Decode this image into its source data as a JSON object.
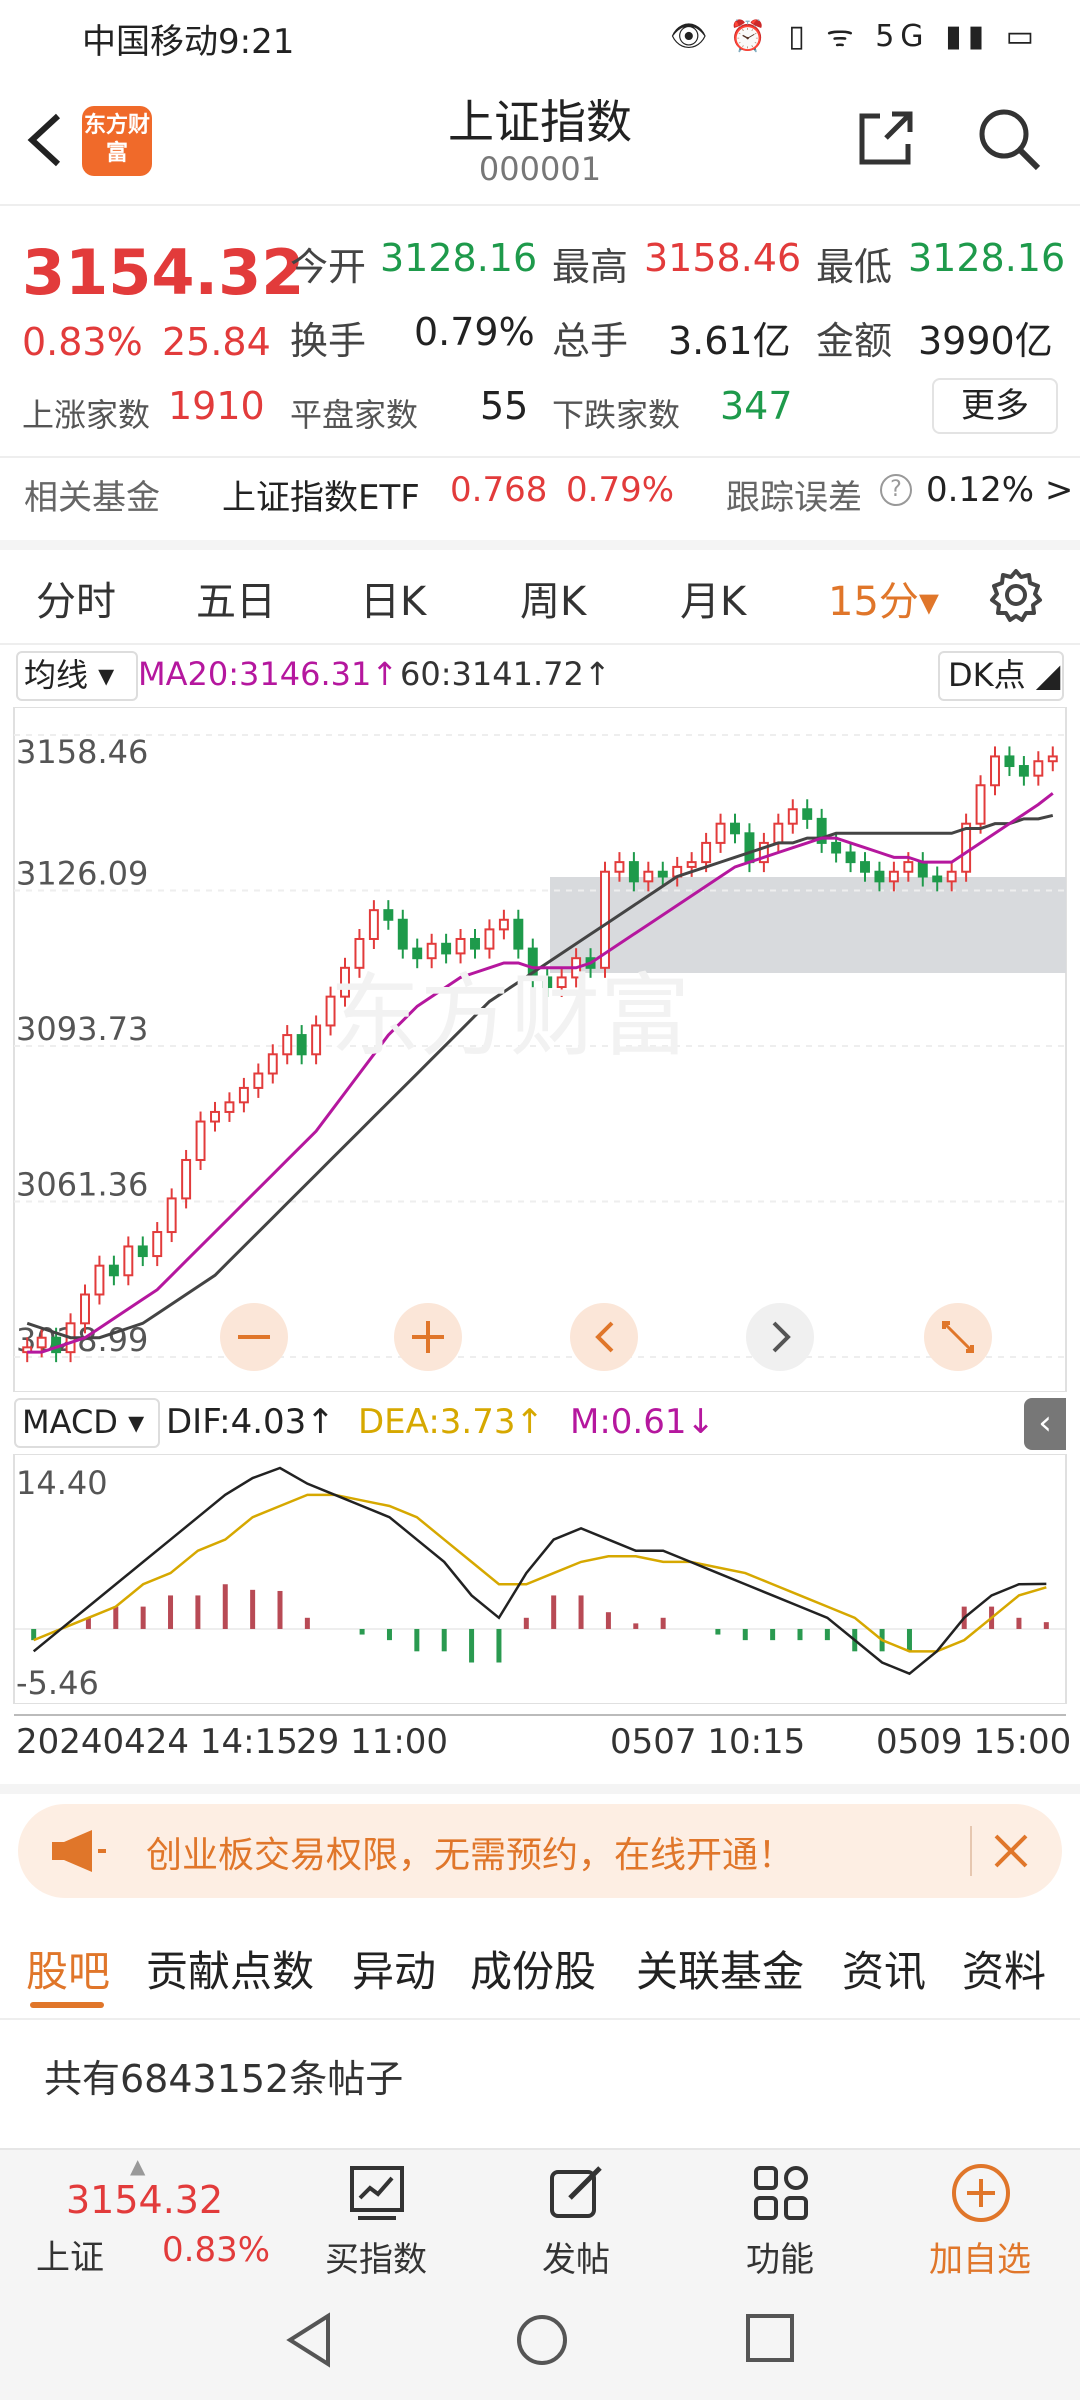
{
  "status": {
    "carrier_time": "中国移动9:21",
    "icons": "👁 ⏰ ▯ ᯤ 5G ▮▮ ▭"
  },
  "header": {
    "logo_text": "东方财富",
    "title": "上证指数",
    "code": "000001"
  },
  "quote": {
    "price": "3154.32",
    "change_pct": "0.83%",
    "change": "25.84",
    "open_label": "今开",
    "open": "3128.16",
    "high_label": "最高",
    "high": "3158.46",
    "low_label": "最低",
    "low": "3128.16",
    "turnover_label": "换手",
    "turnover": "0.79%",
    "volume_label": "总手",
    "volume": "3.61亿",
    "amount_label": "金额",
    "amount": "3990亿",
    "up_label": "上涨家数",
    "up": "1910",
    "flat_label": "平盘家数",
    "flat": "55",
    "down_label": "下跌家数",
    "down": "347",
    "more_label": "更多"
  },
  "fund": {
    "label": "相关基金",
    "name": "上证指数ETF",
    "price": "0.768",
    "pct": "0.79%",
    "err_label": "跟踪误差",
    "err_value": "0.12% >"
  },
  "tabs": [
    "分时",
    "五日",
    "日K",
    "周K",
    "月K"
  ],
  "tab_active": "15分▾",
  "chart_header": {
    "ma_select": "均线 ▾",
    "ma20": "MA20:3146.31↑",
    "ma60": "60:3141.72↑",
    "dk": "DK点 ◢"
  },
  "macd_header": {
    "select": "MACD ▾",
    "dif": "DIF:4.03↑",
    "dea": "DEA:3.73↑",
    "m": "M:0.61↓"
  },
  "chart_data": [
    {
      "type": "line",
      "title": "",
      "y_ticks": [
        "3158.46",
        "3126.09",
        "3093.73",
        "3061.36",
        "3028.99"
      ],
      "ylim": [
        3028.99,
        3158.46
      ],
      "close": [
        3031,
        3033,
        3030,
        3036,
        3042,
        3048,
        3046,
        3052,
        3050,
        3055,
        3062,
        3070,
        3078,
        3080,
        3082,
        3085,
        3088,
        3092,
        3096,
        3092,
        3098,
        3104,
        3110,
        3116,
        3122,
        3120,
        3114,
        3112,
        3115,
        3113,
        3116,
        3114,
        3118,
        3120,
        3114,
        3108,
        3106,
        3108,
        3112,
        3110,
        3130,
        3132,
        3128,
        3130,
        3129,
        3131,
        3132,
        3136,
        3140,
        3138,
        3132,
        3136,
        3140,
        3143,
        3141,
        3136,
        3134,
        3132,
        3130,
        3128,
        3130,
        3132,
        3129,
        3128,
        3130,
        3140,
        3148,
        3154,
        3152,
        3150,
        3153,
        3154
      ],
      "ma20": [
        3030,
        3030,
        3031,
        3032,
        3033,
        3035,
        3037,
        3039,
        3041,
        3043,
        3046,
        3049,
        3052,
        3055,
        3058,
        3061,
        3064,
        3067,
        3070,
        3073,
        3076,
        3080,
        3084,
        3088,
        3092,
        3096,
        3099,
        3102,
        3104,
        3106,
        3108,
        3109,
        3110,
        3111,
        3111,
        3110,
        3110,
        3110,
        3110,
        3111,
        3113,
        3115,
        3117,
        3119,
        3121,
        3123,
        3125,
        3127,
        3129,
        3131,
        3132,
        3133,
        3134,
        3135,
        3136,
        3137,
        3137,
        3136,
        3135,
        3134,
        3133,
        3133,
        3132,
        3132,
        3132,
        3134,
        3136,
        3138,
        3140,
        3142,
        3144,
        3146.31
      ],
      "ma60": [
        3036,
        3035,
        3034,
        3033,
        3033,
        3033,
        3034,
        3035,
        3036,
        3038,
        3040,
        3042,
        3044,
        3046,
        3049,
        3052,
        3055,
        3058,
        3061,
        3064,
        3067,
        3070,
        3073,
        3076,
        3079,
        3082,
        3085,
        3088,
        3091,
        3094,
        3097,
        3100,
        3103,
        3105,
        3107,
        3109,
        3111,
        3113,
        3115,
        3117,
        3119,
        3121,
        3123,
        3125,
        3127,
        3129,
        3130,
        3131,
        3132,
        3133,
        3134,
        3135,
        3136,
        3136,
        3137,
        3137,
        3138,
        3138,
        3138,
        3138,
        3138,
        3138,
        3138,
        3138,
        3138,
        3139,
        3139,
        3140,
        3140,
        3141,
        3141,
        3141.72
      ]
    },
    {
      "type": "bar",
      "title": "",
      "y_ticks": [
        "14.40",
        "-5.46"
      ],
      "ylim": [
        -5.46,
        14.4
      ],
      "dif": [
        -2,
        0,
        2,
        4,
        6,
        8,
        10,
        12,
        13.5,
        14.4,
        13,
        12,
        11,
        10,
        8,
        6,
        3,
        1,
        5,
        8,
        9,
        8,
        7,
        7,
        6,
        5,
        4,
        3,
        2,
        1,
        -1,
        -3,
        -4,
        -2,
        1,
        3,
        4,
        4.03
      ],
      "dea": [
        -1,
        0,
        1,
        2,
        4,
        5,
        7,
        8,
        10,
        11,
        12,
        12,
        11.5,
        11,
        10,
        8,
        6,
        4,
        4,
        5,
        6,
        6.5,
        6.5,
        6,
        6,
        5.5,
        5,
        4,
        3,
        2,
        1,
        -1,
        -2,
        -2,
        -1,
        1,
        3,
        3.73
      ],
      "macd": [
        -1,
        0,
        1,
        2,
        2,
        3,
        3,
        4,
        3.5,
        3.4,
        1,
        0,
        -0.5,
        -1,
        -2,
        -2,
        -3,
        -3,
        1,
        3,
        3,
        1.5,
        0.5,
        1,
        0,
        -0.5,
        -1,
        -1,
        -1,
        -1,
        -2,
        -2,
        -2,
        0,
        2,
        2,
        1,
        0.61
      ]
    }
  ],
  "time_axis": {
    "left": "20240424 14:15",
    "mid1": "29 11:00",
    "mid2": "0507 10:15",
    "right": "0509 15:00"
  },
  "promo": {
    "text": "创业板交易权限，无需预约，在线开通！"
  },
  "community_tabs": [
    "股吧",
    "贡献点数",
    "异动",
    "成份股",
    "关联基金",
    "资讯",
    "资料"
  ],
  "posts": {
    "count_text": "共有6843152条帖子"
  },
  "bottom_nav": {
    "price": "3154.32",
    "name": "上证",
    "pct": "0.83%",
    "buy": "买指数",
    "post": "发帖",
    "func": "功能",
    "add": "加自选"
  },
  "colors": {
    "up": "#e23b3b",
    "down": "#1e9a4b",
    "accent": "#e0762a",
    "ma20": "#b5179e",
    "ma60": "#444444",
    "dea": "#d6a800"
  }
}
